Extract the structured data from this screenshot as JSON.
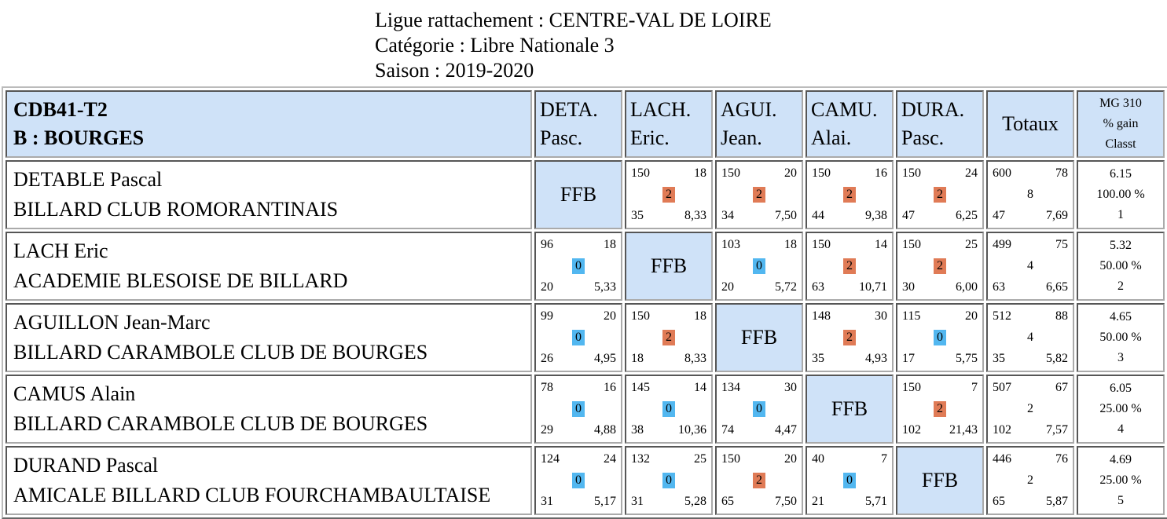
{
  "heading": {
    "ligue": "Ligue rattachement : CENTRE-VAL DE LOIRE",
    "categorie": "Catégorie : Libre Nationale 3",
    "saison": "Saison : 2019-2020"
  },
  "header": {
    "team_line1": "CDB41-T2",
    "team_line2": "B : BOURGES",
    "players": [
      {
        "abbr": "DETA.",
        "first": "Pasc."
      },
      {
        "abbr": "LACH.",
        "first": "Eric."
      },
      {
        "abbr": "AGUI.",
        "first": "Jean."
      },
      {
        "abbr": "CAMU.",
        "first": "Alai."
      },
      {
        "abbr": "DURA.",
        "first": "Pasc."
      }
    ],
    "totals": "Totaux",
    "mg1": "MG 310",
    "mg2": "% gain",
    "mg3": "Classt"
  },
  "ffb_label": "FFB",
  "colors": {
    "header_bg": "#cfe2f8",
    "win": "#e07b56",
    "loss": "#52b7f0"
  },
  "rows": [
    {
      "name": "DETABLE Pascal",
      "club": "BILLARD CLUB ROMORANTINAIS",
      "cells": [
        null,
        {
          "tl": "150",
          "tr": "18",
          "pts": "2",
          "bl": "35",
          "br": "8,33"
        },
        {
          "tl": "150",
          "tr": "20",
          "pts": "2",
          "bl": "34",
          "br": "7,50"
        },
        {
          "tl": "150",
          "tr": "16",
          "pts": "2",
          "bl": "44",
          "br": "9,38"
        },
        {
          "tl": "150",
          "tr": "24",
          "pts": "2",
          "bl": "47",
          "br": "6,25"
        }
      ],
      "totals": {
        "tl": "600",
        "tr": "78",
        "mid": "8",
        "bl": "47",
        "br": "7,69"
      },
      "mg": {
        "avg": "6.15",
        "pct": "100.00 %",
        "rank": "1"
      }
    },
    {
      "name": "LACH Eric",
      "club": "ACADEMIE BLESOISE DE BILLARD",
      "cells": [
        {
          "tl": "96",
          "tr": "18",
          "pts": "0",
          "bl": "20",
          "br": "5,33"
        },
        null,
        {
          "tl": "103",
          "tr": "18",
          "pts": "0",
          "bl": "20",
          "br": "5,72"
        },
        {
          "tl": "150",
          "tr": "14",
          "pts": "2",
          "bl": "63",
          "br": "10,71"
        },
        {
          "tl": "150",
          "tr": "25",
          "pts": "2",
          "bl": "30",
          "br": "6,00"
        }
      ],
      "totals": {
        "tl": "499",
        "tr": "75",
        "mid": "4",
        "bl": "63",
        "br": "6,65"
      },
      "mg": {
        "avg": "5.32",
        "pct": "50.00 %",
        "rank": "2"
      }
    },
    {
      "name": "AGUILLON Jean-Marc",
      "club": "BILLARD CARAMBOLE CLUB DE BOURGES",
      "cells": [
        {
          "tl": "99",
          "tr": "20",
          "pts": "0",
          "bl": "26",
          "br": "4,95"
        },
        {
          "tl": "150",
          "tr": "18",
          "pts": "2",
          "bl": "18",
          "br": "8,33"
        },
        null,
        {
          "tl": "148",
          "tr": "30",
          "pts": "2",
          "bl": "35",
          "br": "4,93"
        },
        {
          "tl": "115",
          "tr": "20",
          "pts": "0",
          "bl": "17",
          "br": "5,75"
        }
      ],
      "totals": {
        "tl": "512",
        "tr": "88",
        "mid": "4",
        "bl": "35",
        "br": "5,82"
      },
      "mg": {
        "avg": "4.65",
        "pct": "50.00 %",
        "rank": "3"
      }
    },
    {
      "name": "CAMUS Alain",
      "club": "BILLARD CARAMBOLE CLUB DE BOURGES",
      "cells": [
        {
          "tl": "78",
          "tr": "16",
          "pts": "0",
          "bl": "29",
          "br": "4,88"
        },
        {
          "tl": "145",
          "tr": "14",
          "pts": "0",
          "bl": "38",
          "br": "10,36"
        },
        {
          "tl": "134",
          "tr": "30",
          "pts": "0",
          "bl": "74",
          "br": "4,47"
        },
        null,
        {
          "tl": "150",
          "tr": "7",
          "pts": "2",
          "bl": "102",
          "br": "21,43"
        }
      ],
      "totals": {
        "tl": "507",
        "tr": "67",
        "mid": "2",
        "bl": "102",
        "br": "7,57"
      },
      "mg": {
        "avg": "6.05",
        "pct": "25.00 %",
        "rank": "4"
      }
    },
    {
      "name": "DURAND Pascal",
      "club": "AMICALE BILLARD CLUB FOURCHAMBAULTAISE",
      "cells": [
        {
          "tl": "124",
          "tr": "24",
          "pts": "0",
          "bl": "31",
          "br": "5,17"
        },
        {
          "tl": "132",
          "tr": "25",
          "pts": "0",
          "bl": "31",
          "br": "5,28"
        },
        {
          "tl": "150",
          "tr": "20",
          "pts": "2",
          "bl": "65",
          "br": "7,50"
        },
        {
          "tl": "40",
          "tr": "7",
          "pts": "0",
          "bl": "21",
          "br": "5,71"
        },
        null
      ],
      "totals": {
        "tl": "446",
        "tr": "76",
        "mid": "2",
        "bl": "65",
        "br": "5,87"
      },
      "mg": {
        "avg": "4.69",
        "pct": "25.00 %",
        "rank": "5"
      }
    }
  ]
}
